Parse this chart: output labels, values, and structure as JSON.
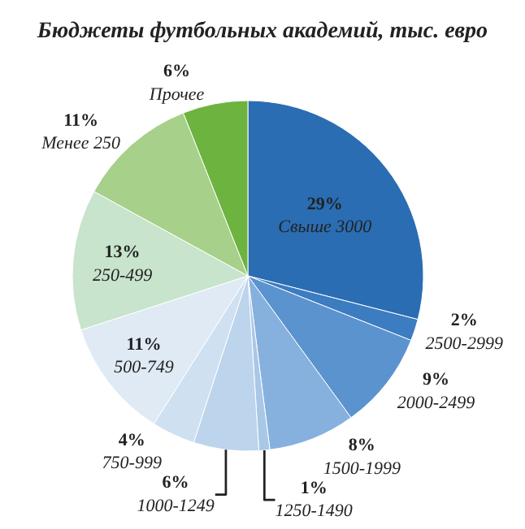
{
  "chart_data": {
    "type": "pie",
    "title": "Бюджеты футбольных академий, тыс. евро",
    "categories": [
      "Свыше 3000",
      "2500-2999",
      "2000-2499",
      "1500-1999",
      "1250-1490",
      "1000-1249",
      "750-999",
      "500-749",
      "250-499",
      "Менее 250",
      "Прочее"
    ],
    "values": [
      29,
      2,
      9,
      8,
      1,
      6,
      4,
      11,
      13,
      11,
      6
    ],
    "value_labels": [
      "29%",
      "2%",
      "9%",
      "8%",
      "1%",
      "6%",
      "4%",
      "11%",
      "13%",
      "11%",
      "6%"
    ],
    "colors": [
      "#2a6db3",
      "#3c7cc0",
      "#5b93cf",
      "#86b1de",
      "#a9c7e6",
      "#bcd4ec",
      "#cfe0f1",
      "#dfeaf5",
      "#c8e4cc",
      "#a7d08a",
      "#6db33f"
    ],
    "legend": false
  }
}
